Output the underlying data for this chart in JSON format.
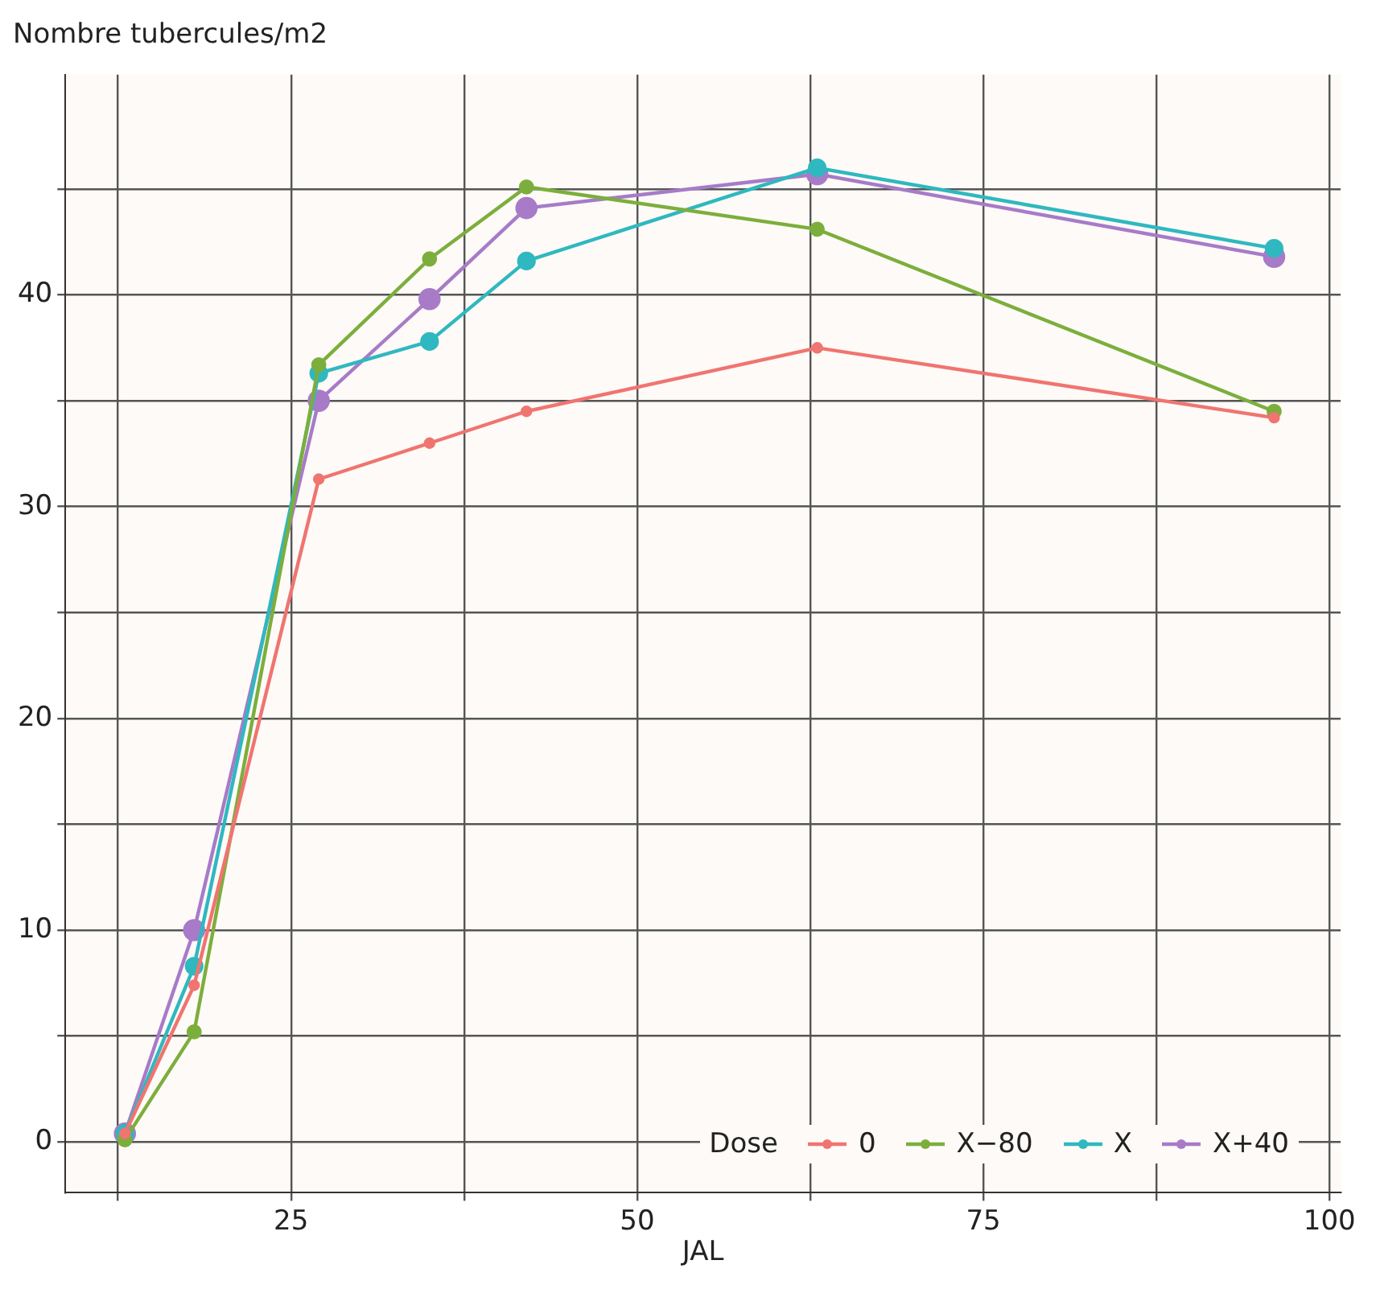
{
  "chart_data": {
    "type": "line",
    "ylabel": "Nombre tubercules/m2",
    "xlabel": "JAL",
    "legend_title": "Dose",
    "x": [
      13,
      18,
      27,
      35,
      42,
      63,
      96
    ],
    "series": [
      {
        "name": "0",
        "color": "#f07470",
        "values": [
          0.4,
          7.4,
          31.3,
          33.0,
          34.5,
          37.5,
          34.2
        ]
      },
      {
        "name": "X−80",
        "color": "#7cae3c",
        "values": [
          0.1,
          5.2,
          36.7,
          41.7,
          45.1,
          43.1,
          34.5
        ]
      },
      {
        "name": "X",
        "color": "#2fb8bf",
        "values": [
          0.4,
          8.3,
          36.3,
          37.8,
          41.6,
          46.0,
          42.2
        ]
      },
      {
        "name": "X+40",
        "color": "#a77bc8",
        "values": [
          0.4,
          10.0,
          35.0,
          39.8,
          44.1,
          45.7,
          41.8
        ]
      }
    ],
    "xlim": [
      8.7,
      100.8
    ],
    "ylim": [
      -2.4,
      50.4
    ],
    "xticks": [
      {
        "value": 12.5,
        "label": null
      },
      25,
      {
        "value": 37.5,
        "label": null
      },
      50,
      {
        "value": 62.5,
        "label": null
      },
      75,
      {
        "value": 87.5,
        "label": null
      },
      100
    ],
    "yticks": [
      0,
      {
        "value": 5,
        "label": null
      },
      10,
      {
        "value": 15,
        "label": null
      },
      20,
      {
        "value": 25,
        "label": null
      },
      30,
      {
        "value": 35,
        "label": null
      },
      40,
      {
        "value": 45,
        "label": null
      }
    ],
    "grid": true,
    "legend": "bottom right",
    "marker": "circle",
    "line_style": "solid"
  }
}
